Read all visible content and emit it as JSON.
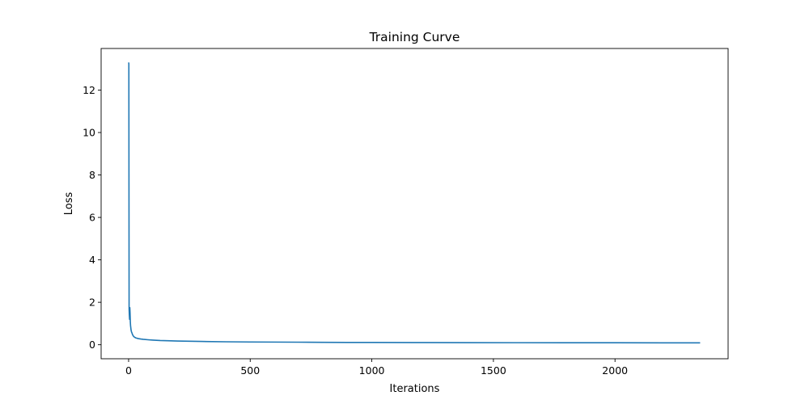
{
  "chart_data": {
    "type": "line",
    "title": "Training Curve",
    "xlabel": "Iterations",
    "ylabel": "Loss",
    "xlim": [
      -113,
      2465
    ],
    "ylim": [
      -0.66,
      13.96
    ],
    "x_ticks": [
      0,
      500,
      1000,
      1500,
      2000
    ],
    "x_tick_labels": [
      "0",
      "500",
      "1000",
      "1500",
      "2000"
    ],
    "y_ticks": [
      0,
      2,
      4,
      6,
      8,
      10,
      12
    ],
    "y_tick_labels": [
      "0",
      "2",
      "4",
      "6",
      "8",
      "10",
      "12"
    ],
    "grid": false,
    "legend": null,
    "color": "#1f77b4",
    "series": [
      {
        "x": [
          0,
          1,
          2,
          3,
          4,
          5,
          6,
          7,
          8,
          9,
          10,
          12,
          14,
          16,
          18,
          20,
          25,
          30,
          40,
          50,
          60,
          80,
          100,
          130,
          160,
          200,
          250,
          300,
          400,
          500,
          600,
          700,
          800,
          900,
          1000,
          1200,
          1400,
          1600,
          1800,
          2000,
          2200,
          2350
        ],
        "y": [
          13.3,
          13.25,
          1.7,
          1.4,
          1.2,
          1.75,
          1.5,
          1.1,
          0.9,
          0.8,
          0.7,
          0.6,
          0.55,
          0.48,
          0.44,
          0.4,
          0.35,
          0.32,
          0.29,
          0.27,
          0.255,
          0.235,
          0.22,
          0.2,
          0.19,
          0.175,
          0.165,
          0.155,
          0.14,
          0.13,
          0.125,
          0.12,
          0.115,
          0.11,
          0.108,
          0.104,
          0.1,
          0.097,
          0.095,
          0.093,
          0.091,
          0.09
        ]
      }
    ]
  }
}
